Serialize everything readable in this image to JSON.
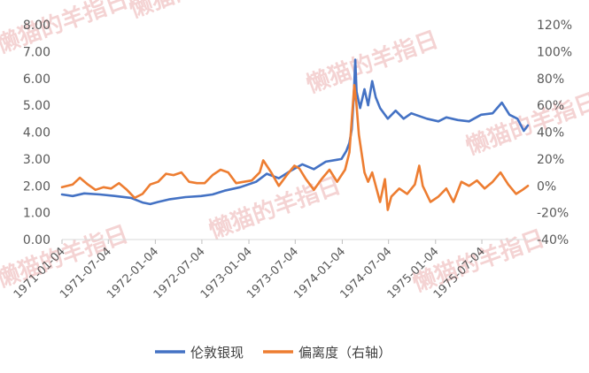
{
  "chart_data": {
    "type": "line",
    "title": "",
    "xlabel": "",
    "ylabel": "",
    "x_tick_labels": [
      "1971-01-04",
      "1971-07-04",
      "1972-01-04",
      "1972-07-04",
      "1973-01-04",
      "1973-07-04",
      "1974-01-04",
      "1974-07-04",
      "1975-01-04",
      "1975-07-04"
    ],
    "x_range": [
      "1971-01-04",
      "1975-12-31"
    ],
    "y_left": {
      "min": 0,
      "max": 8,
      "ticks": [
        "0.00",
        "1.00",
        "2.00",
        "3.00",
        "4.00",
        "5.00",
        "6.00",
        "7.00",
        "8.00"
      ]
    },
    "y_right": {
      "min": -40,
      "max": 120,
      "unit": "%",
      "ticks": [
        "-40%",
        "-20%",
        "0%",
        "20%",
        "40%",
        "60%",
        "80%",
        "100%",
        "120%"
      ]
    },
    "legend_position": "bottom",
    "grid": false,
    "series": [
      {
        "name": "伦敦银现",
        "axis": "left",
        "color": "#4472C4",
        "points": [
          [
            "1971-01-04",
            1.68
          ],
          [
            "1971-02-15",
            1.62
          ],
          [
            "1971-04-01",
            1.72
          ],
          [
            "1971-06-01",
            1.68
          ],
          [
            "1971-08-01",
            1.62
          ],
          [
            "1971-10-01",
            1.55
          ],
          [
            "1971-11-15",
            1.38
          ],
          [
            "1971-12-15",
            1.32
          ],
          [
            "1972-01-15",
            1.4
          ],
          [
            "1972-03-01",
            1.5
          ],
          [
            "1972-05-01",
            1.58
          ],
          [
            "1972-07-01",
            1.62
          ],
          [
            "1972-08-15",
            1.68
          ],
          [
            "1972-10-01",
            1.82
          ],
          [
            "1972-12-01",
            1.95
          ],
          [
            "1973-02-01",
            2.15
          ],
          [
            "1973-03-15",
            2.45
          ],
          [
            "1973-05-01",
            2.28
          ],
          [
            "1973-06-15",
            2.55
          ],
          [
            "1973-08-01",
            2.8
          ],
          [
            "1973-09-15",
            2.62
          ],
          [
            "1973-11-01",
            2.9
          ],
          [
            "1974-01-01",
            3.0
          ],
          [
            "1974-01-20",
            3.3
          ],
          [
            "1974-02-01",
            3.6
          ],
          [
            "1974-02-10",
            4.1
          ],
          [
            "1974-02-18",
            5.3
          ],
          [
            "1974-02-24",
            6.7
          ],
          [
            "1974-03-01",
            5.5
          ],
          [
            "1974-03-15",
            4.9
          ],
          [
            "1974-04-01",
            5.6
          ],
          [
            "1974-04-15",
            5.0
          ],
          [
            "1974-05-01",
            5.9
          ],
          [
            "1974-05-15",
            5.3
          ],
          [
            "1974-06-01",
            4.9
          ],
          [
            "1974-07-01",
            4.5
          ],
          [
            "1974-08-01",
            4.8
          ],
          [
            "1974-09-01",
            4.5
          ],
          [
            "1974-10-01",
            4.7
          ],
          [
            "1974-11-01",
            4.6
          ],
          [
            "1974-12-01",
            4.5
          ],
          [
            "1975-01-15",
            4.4
          ],
          [
            "1975-02-15",
            4.55
          ],
          [
            "1975-04-01",
            4.45
          ],
          [
            "1975-05-15",
            4.4
          ],
          [
            "1975-07-01",
            4.65
          ],
          [
            "1975-08-15",
            4.7
          ],
          [
            "1975-09-20",
            5.1
          ],
          [
            "1975-10-20",
            4.65
          ],
          [
            "1975-11-20",
            4.5
          ],
          [
            "1975-12-15",
            4.05
          ],
          [
            "1975-12-31",
            4.25
          ]
        ]
      },
      {
        "name": "偏离度（右轴）",
        "axis": "right",
        "color": "#ED7D31",
        "points": [
          [
            "1971-01-04",
            -1
          ],
          [
            "1971-02-15",
            1
          ],
          [
            "1971-03-15",
            6
          ],
          [
            "1971-04-15",
            1
          ],
          [
            "1971-05-15",
            -3
          ],
          [
            "1971-06-15",
            -1
          ],
          [
            "1971-07-15",
            -2
          ],
          [
            "1971-08-15",
            2
          ],
          [
            "1971-09-15",
            -3
          ],
          [
            "1971-10-15",
            -9
          ],
          [
            "1971-11-15",
            -6
          ],
          [
            "1971-12-15",
            1
          ],
          [
            "1972-01-15",
            3
          ],
          [
            "1972-02-15",
            9
          ],
          [
            "1972-03-15",
            8
          ],
          [
            "1972-04-15",
            10
          ],
          [
            "1972-05-15",
            3
          ],
          [
            "1972-06-15",
            2
          ],
          [
            "1972-07-15",
            2
          ],
          [
            "1972-08-15",
            8
          ],
          [
            "1972-09-15",
            12
          ],
          [
            "1972-10-15",
            10
          ],
          [
            "1972-11-15",
            2
          ],
          [
            "1972-12-15",
            3
          ],
          [
            "1973-01-15",
            4
          ],
          [
            "1973-02-15",
            10
          ],
          [
            "1973-03-01",
            19
          ],
          [
            "1973-04-01",
            10
          ],
          [
            "1973-05-01",
            0
          ],
          [
            "1973-06-01",
            8
          ],
          [
            "1973-07-01",
            15
          ],
          [
            "1973-07-20",
            13
          ],
          [
            "1973-08-15",
            5
          ],
          [
            "1973-09-15",
            -3
          ],
          [
            "1973-10-15",
            5
          ],
          [
            "1973-11-15",
            12
          ],
          [
            "1973-12-15",
            3
          ],
          [
            "1974-01-15",
            12
          ],
          [
            "1974-02-01",
            25
          ],
          [
            "1974-02-20",
            75
          ],
          [
            "1974-02-28",
            62
          ],
          [
            "1974-03-10",
            38
          ],
          [
            "1974-04-01",
            10
          ],
          [
            "1974-04-15",
            3
          ],
          [
            "1974-05-01",
            10
          ],
          [
            "1974-06-01",
            -12
          ],
          [
            "1974-06-20",
            5
          ],
          [
            "1974-07-01",
            -18
          ],
          [
            "1974-07-15",
            -8
          ],
          [
            "1974-08-15",
            -2
          ],
          [
            "1974-09-15",
            -6
          ],
          [
            "1974-10-15",
            1
          ],
          [
            "1974-11-01",
            15
          ],
          [
            "1974-11-15",
            0
          ],
          [
            "1974-12-15",
            -12
          ],
          [
            "1975-01-15",
            -8
          ],
          [
            "1975-02-15",
            -2
          ],
          [
            "1975-03-15",
            -12
          ],
          [
            "1975-04-15",
            3
          ],
          [
            "1975-05-15",
            0
          ],
          [
            "1975-06-15",
            4
          ],
          [
            "1975-07-15",
            -2
          ],
          [
            "1975-08-15",
            3
          ],
          [
            "1975-09-15",
            10
          ],
          [
            "1975-10-15",
            1
          ],
          [
            "1975-11-15",
            -6
          ],
          [
            "1975-12-10",
            -3
          ],
          [
            "1975-12-31",
            0
          ]
        ]
      }
    ]
  },
  "watermark": "懒猫的羊指日"
}
